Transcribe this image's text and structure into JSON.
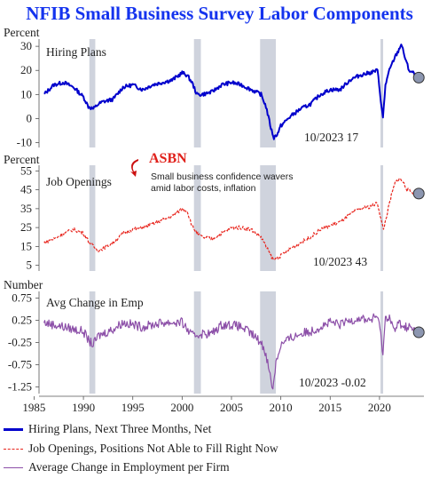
{
  "title": "NFIB Small Business Survey Labor Components",
  "annotation": {
    "logo": "ASBN",
    "headline_line1": "Small business confidence wavers",
    "headline_line2": "amid labor costs, inflation"
  },
  "legend": [
    {
      "label": "Hiring Plans, Next Three Months, Net",
      "color": "#0000cc",
      "style": "solid"
    },
    {
      "label": "Job Openings, Positions Not Able to Fill Right Now",
      "color": "#e8241c",
      "style": "dashed"
    },
    {
      "label": "Average Change in Employment per Firm",
      "color": "#8c4fa8",
      "style": "solid"
    }
  ],
  "chart_data": [
    {
      "type": "line",
      "unit_label": "Percent",
      "series_name": "Hiring Plans",
      "color": "#0000cc",
      "ylim": [
        -12,
        33
      ],
      "yticks": [
        -10,
        0,
        10,
        20,
        30
      ],
      "xlim": [
        1985.5,
        2024.5
      ],
      "last_value_label": "10/2023 17",
      "points": [
        [
          1986.0,
          10
        ],
        [
          1986.5,
          12
        ],
        [
          1987.0,
          14
        ],
        [
          1988.0,
          15
        ],
        [
          1989.0,
          13
        ],
        [
          1990.0,
          9
        ],
        [
          1990.5,
          5
        ],
        [
          1991.0,
          4
        ],
        [
          1991.5,
          6
        ],
        [
          1992.0,
          7
        ],
        [
          1993.0,
          8
        ],
        [
          1994.0,
          13
        ],
        [
          1995.0,
          14
        ],
        [
          1996.0,
          12
        ],
        [
          1997.0,
          14
        ],
        [
          1998.0,
          15
        ],
        [
          1999.0,
          16
        ],
        [
          2000.0,
          19
        ],
        [
          2000.5,
          18
        ],
        [
          2001.0,
          15
        ],
        [
          2001.5,
          10
        ],
        [
          2002.0,
          10
        ],
        [
          2003.0,
          11
        ],
        [
          2004.0,
          14
        ],
        [
          2005.0,
          15
        ],
        [
          2006.0,
          14
        ],
        [
          2007.0,
          12
        ],
        [
          2008.0,
          10
        ],
        [
          2008.5,
          5
        ],
        [
          2009.0,
          -4
        ],
        [
          2009.3,
          -8
        ],
        [
          2009.7,
          -6
        ],
        [
          2010.0,
          -3
        ],
        [
          2011.0,
          1
        ],
        [
          2012.0,
          4
        ],
        [
          2013.0,
          6
        ],
        [
          2014.0,
          10
        ],
        [
          2015.0,
          12
        ],
        [
          2016.0,
          12
        ],
        [
          2017.0,
          16
        ],
        [
          2018.0,
          18
        ],
        [
          2019.0,
          19
        ],
        [
          2019.8,
          20
        ],
        [
          2020.2,
          5
        ],
        [
          2020.35,
          0
        ],
        [
          2020.6,
          14
        ],
        [
          2021.0,
          20
        ],
        [
          2021.5,
          25
        ],
        [
          2021.9,
          28
        ],
        [
          2022.2,
          31
        ],
        [
          2022.6,
          25
        ],
        [
          2023.0,
          20
        ],
        [
          2023.4,
          19
        ],
        [
          2023.8,
          17
        ]
      ]
    },
    {
      "type": "line",
      "unit_label": "Percent",
      "series_name": "Job Openings",
      "color": "#e8241c",
      "ylim": [
        2,
        58
      ],
      "yticks": [
        5,
        15,
        25,
        35,
        45,
        55
      ],
      "xlim": [
        1985.5,
        2024.5
      ],
      "last_value_label": "10/2023 43",
      "points": [
        [
          1986.0,
          17
        ],
        [
          1987.0,
          19
        ],
        [
          1988.0,
          22
        ],
        [
          1989.0,
          24
        ],
        [
          1990.0,
          22
        ],
        [
          1990.5,
          18
        ],
        [
          1991.0,
          15
        ],
        [
          1991.5,
          13
        ],
        [
          1992.0,
          14
        ],
        [
          1993.0,
          17
        ],
        [
          1994.0,
          22
        ],
        [
          1995.0,
          24
        ],
        [
          1996.0,
          25
        ],
        [
          1997.0,
          27
        ],
        [
          1998.0,
          29
        ],
        [
          1999.0,
          31
        ],
        [
          2000.0,
          35
        ],
        [
          2000.5,
          34
        ],
        [
          2001.0,
          26
        ],
        [
          2001.5,
          22
        ],
        [
          2002.0,
          20
        ],
        [
          2003.0,
          19
        ],
        [
          2004.0,
          22
        ],
        [
          2005.0,
          25
        ],
        [
          2006.0,
          25
        ],
        [
          2007.0,
          24
        ],
        [
          2008.0,
          20
        ],
        [
          2008.5,
          15
        ],
        [
          2009.0,
          10
        ],
        [
          2009.3,
          8
        ],
        [
          2010.0,
          10
        ],
        [
          2011.0,
          14
        ],
        [
          2012.0,
          17
        ],
        [
          2013.0,
          20
        ],
        [
          2014.0,
          24
        ],
        [
          2015.0,
          26
        ],
        [
          2016.0,
          28
        ],
        [
          2017.0,
          32
        ],
        [
          2018.0,
          35
        ],
        [
          2019.0,
          36
        ],
        [
          2019.8,
          38
        ],
        [
          2020.2,
          28
        ],
        [
          2020.4,
          24
        ],
        [
          2020.8,
          33
        ],
        [
          2021.2,
          42
        ],
        [
          2021.6,
          49
        ],
        [
          2022.0,
          51
        ],
        [
          2022.4,
          49
        ],
        [
          2022.8,
          45
        ],
        [
          2023.2,
          44
        ],
        [
          2023.8,
          43
        ]
      ]
    },
    {
      "type": "line",
      "unit_label": "Number",
      "series_name": "Avg Change in Emp",
      "color": "#8c4fa8",
      "ylim": [
        -1.4,
        0.9
      ],
      "yticks": [
        0.75,
        0.25,
        -0.25,
        -0.75,
        -1.25
      ],
      "yticklabels": [
        "0.75",
        "0.25",
        "-0.25",
        "-0.75",
        "-1.25"
      ],
      "xlim": [
        1985.5,
        2024.5
      ],
      "xticks": [
        1985,
        1990,
        1995,
        2000,
        2005,
        2010,
        2015,
        2020
      ],
      "last_value_label": "10/2023 -0.02",
      "points": [
        [
          1986.0,
          0.2
        ],
        [
          1987.0,
          0.15
        ],
        [
          1988.0,
          0.1
        ],
        [
          1989.0,
          0.05
        ],
        [
          1990.0,
          0.0
        ],
        [
          1990.5,
          -0.2
        ],
        [
          1991.0,
          -0.3
        ],
        [
          1991.5,
          -0.1
        ],
        [
          1992.0,
          -0.05
        ],
        [
          1993.0,
          0.05
        ],
        [
          1994.0,
          0.2
        ],
        [
          1995.0,
          0.15
        ],
        [
          1996.0,
          0.1
        ],
        [
          1997.0,
          0.15
        ],
        [
          1998.0,
          0.2
        ],
        [
          1999.0,
          0.2
        ],
        [
          2000.0,
          0.2
        ],
        [
          2001.0,
          -0.1
        ],
        [
          2002.0,
          -0.05
        ],
        [
          2003.0,
          -0.05
        ],
        [
          2004.0,
          0.15
        ],
        [
          2005.0,
          0.15
        ],
        [
          2006.0,
          0.1
        ],
        [
          2007.0,
          -0.05
        ],
        [
          2008.0,
          -0.25
        ],
        [
          2008.5,
          -0.5
        ],
        [
          2009.0,
          -1.1
        ],
        [
          2009.2,
          -1.28
        ],
        [
          2009.5,
          -0.7
        ],
        [
          2010.0,
          -0.3
        ],
        [
          2011.0,
          -0.15
        ],
        [
          2012.0,
          -0.05
        ],
        [
          2013.0,
          0.0
        ],
        [
          2014.0,
          0.1
        ],
        [
          2015.0,
          0.2
        ],
        [
          2016.0,
          0.15
        ],
        [
          2017.0,
          0.25
        ],
        [
          2018.0,
          0.3
        ],
        [
          2019.0,
          0.25
        ],
        [
          2019.8,
          0.35
        ],
        [
          2020.2,
          -0.2
        ],
        [
          2020.35,
          -0.5
        ],
        [
          2020.6,
          0.3
        ],
        [
          2021.0,
          0.35
        ],
        [
          2021.5,
          0.0
        ],
        [
          2022.0,
          0.2
        ],
        [
          2022.5,
          0.1
        ],
        [
          2023.0,
          0.1
        ],
        [
          2023.8,
          -0.02
        ]
      ]
    }
  ],
  "recession_bands": [
    [
      1990.6,
      1991.2
    ],
    [
      2001.2,
      2001.9
    ],
    [
      2007.9,
      2009.5
    ],
    [
      2020.1,
      2020.35
    ]
  ]
}
